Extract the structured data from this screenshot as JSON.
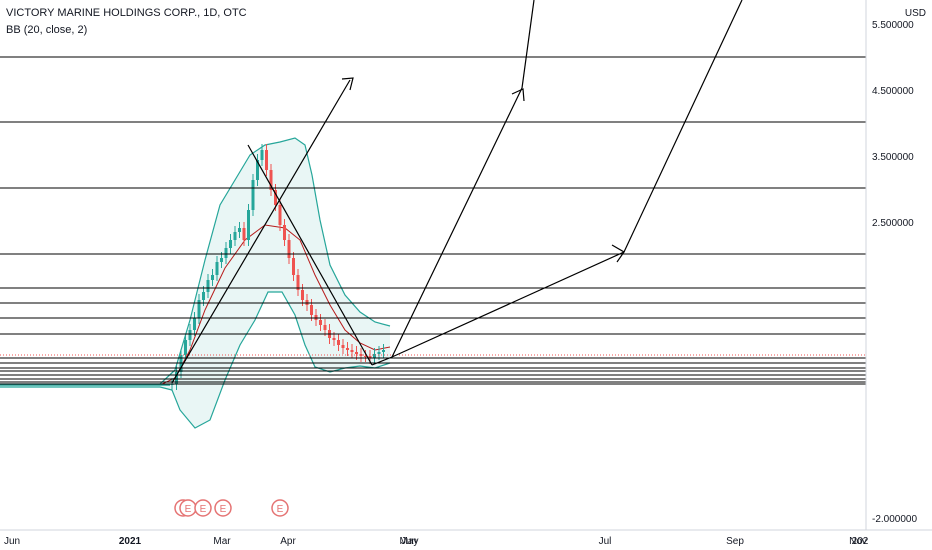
{
  "header": {
    "symbol": "VICTORY MARINE HOLDINGS CORP., 1D, OTC",
    "indicator": "BB (20, close, 2)"
  },
  "currency": "USD",
  "colors": {
    "candle_up": "#26a69a",
    "candle_down": "#ef5350",
    "bb_band": "#26a69a",
    "bb_fill": "#e9f6f5",
    "bb_basis": "#b71c1c",
    "drawing": "#000000",
    "last_price": "#ef5350",
    "earnings": "#e57373"
  },
  "chart_data": {
    "type": "line",
    "price_scale_ticks": [
      "5.500000",
      "4.500000",
      "3.500000",
      "2.500000",
      "-2.000000"
    ],
    "price_scale_tick_values": [
      5.5,
      4.5,
      3.5,
      2.5,
      -2.0
    ],
    "horizontal_levels": [
      "5.008248",
      "4.018106",
      "3.004132",
      "2.013859",
      "1.500061",
      "1.197993",
      "1.000580",
      "0.805459",
      "0.448399",
      "0.349953",
      "0.269139",
      "0.248568",
      "0.200079",
      "0.150122",
      "0.100164",
      "0.045798",
      "0.001718"
    ],
    "last_price": "0.480000",
    "x_tick_labels": [
      "Jun",
      "2021",
      "Mar",
      "Apr",
      "May",
      "Jun",
      "Jul",
      "Sep",
      "Nov",
      "202"
    ],
    "earnings_markers": [
      "E",
      "E",
      "E",
      "E",
      "E"
    ],
    "series": [
      {
        "name": "BB (20, close, 2)",
        "values": []
      }
    ]
  }
}
